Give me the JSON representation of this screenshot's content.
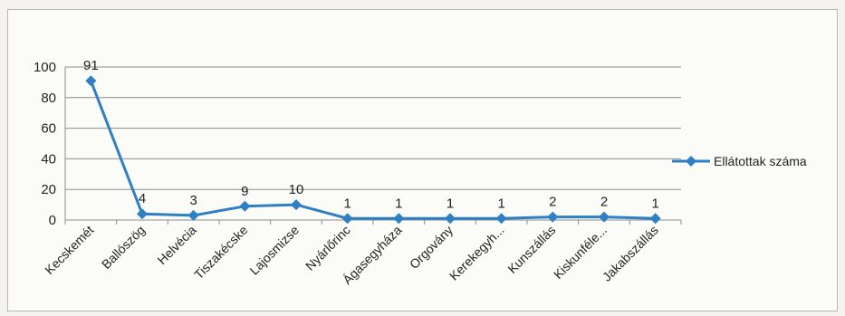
{
  "chart_data": {
    "type": "line",
    "categories": [
      "Kecskemét",
      "Ballószög",
      "Helvécia",
      "Tiszakécske",
      "Lajosmizse",
      "Nyárlőrinc",
      "Ágasegyháza",
      "Orgovány",
      "Kerekegyh...",
      "Kunszállás",
      "Kiskunféle...",
      "Jakabszállás"
    ],
    "series": [
      {
        "name": "Ellátottak száma",
        "values": [
          91,
          4,
          3,
          9,
          10,
          1,
          1,
          1,
          1,
          2,
          2,
          1
        ],
        "labels": [
          "91",
          "4",
          "3",
          "9",
          "10",
          "1",
          "1",
          "1",
          "1",
          "2",
          "2",
          "1"
        ],
        "color": "#2e7fc4"
      }
    ],
    "title": "",
    "xlabel": "",
    "ylabel": "",
    "ylim": [
      0,
      100
    ],
    "yticks": [
      "0",
      "20",
      "40",
      "60",
      "80",
      "100"
    ],
    "grid": true,
    "legend": "right",
    "colors": {
      "line": "#2e7fc4",
      "grid": "#8c8c8c",
      "axis": "#8c8c8c"
    }
  }
}
